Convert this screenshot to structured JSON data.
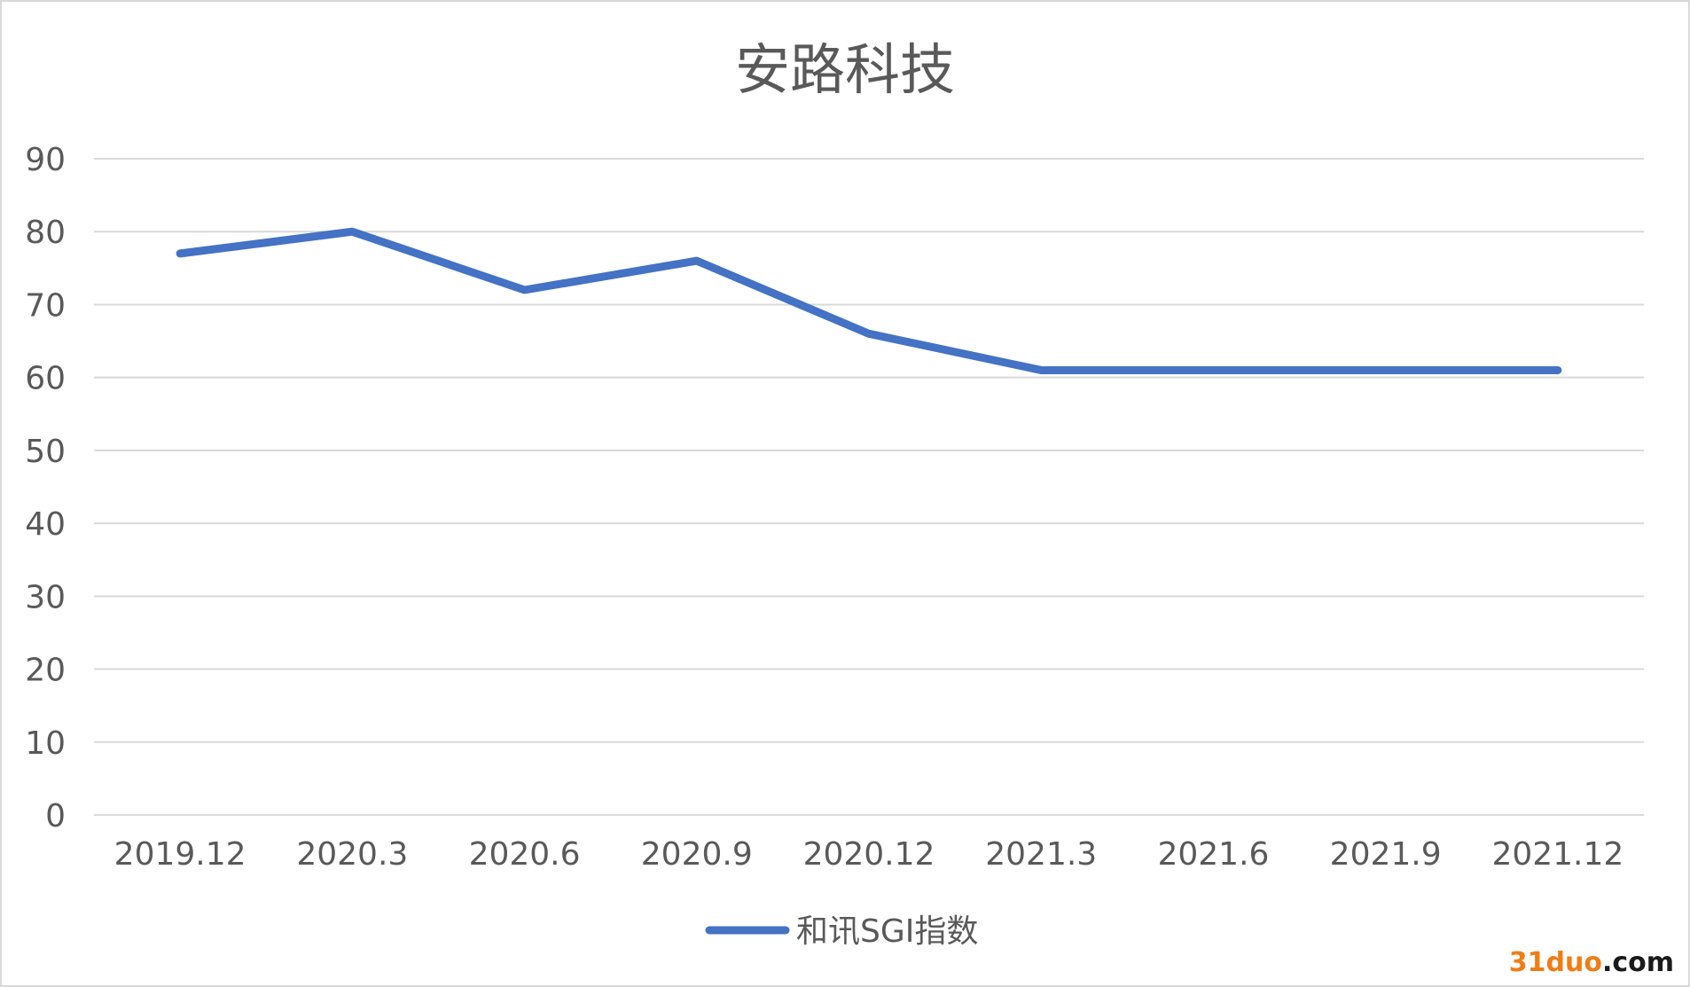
{
  "chart_data": {
    "type": "line",
    "title": "安路科技",
    "xlabel": "",
    "ylabel": "",
    "categories": [
      "2019.12",
      "2020.3",
      "2020.6",
      "2020.9",
      "2020.12",
      "2021.3",
      "2021.6",
      "2021.9",
      "2021.12"
    ],
    "series": [
      {
        "name": "和讯SGI指数",
        "values": [
          77,
          80,
          72,
          76,
          66,
          61,
          61,
          61,
          61
        ]
      }
    ],
    "ylim": [
      0,
      90
    ],
    "yticks": [
      "0",
      "10",
      "20",
      "30",
      "40",
      "50",
      "60",
      "70",
      "80",
      "90"
    ],
    "grid": true,
    "legend_position": "bottom",
    "colors": {
      "series": "#4472c4",
      "grid": "#d9d9d9",
      "text": "#595959",
      "border": "#d9d9d9"
    }
  },
  "watermark": {
    "brand": "31duo",
    "tld": ".com",
    "brand_color": "#f07d16"
  }
}
